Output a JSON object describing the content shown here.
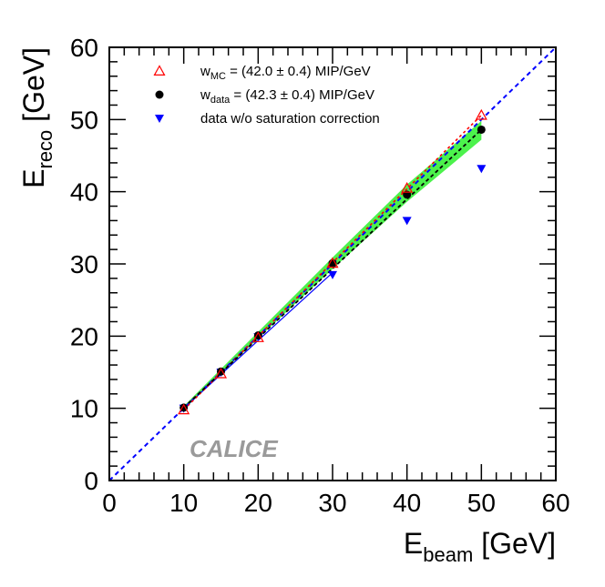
{
  "chart_data": {
    "type": "scatter",
    "xlabel": {
      "main": "E",
      "sub": "beam",
      "unit": " [GeV]"
    },
    "ylabel": {
      "main": "E",
      "sub": "reco",
      "unit": " [GeV]"
    },
    "xlim": [
      0,
      60
    ],
    "ylim": [
      0,
      60
    ],
    "x_ticks": [
      0,
      10,
      20,
      30,
      40,
      50,
      60
    ],
    "y_ticks": [
      0,
      10,
      20,
      30,
      40,
      50,
      60
    ],
    "x_tick_labels": [
      "0",
      "10",
      "20",
      "30",
      "40",
      "50",
      "60"
    ],
    "y_tick_labels": [
      "0",
      "10",
      "20",
      "30",
      "40",
      "50",
      "60"
    ],
    "grid": false,
    "legend_position": "top-left",
    "watermark": "CALICE",
    "diagonal_reference": {
      "x": [
        0,
        60
      ],
      "y": [
        0,
        60
      ],
      "color": "#0000ff",
      "style": "dashed"
    },
    "series": [
      {
        "name": "(42.0 ± 0.4) MIP/GeV",
        "legend_prefix": "w",
        "legend_sub": "MC",
        "legend_suffix": " = (42.0 ± 0.4) MIP/GeV",
        "marker": "open-triangle-up",
        "color": "#ff0000",
        "x": [
          10,
          15,
          20,
          30,
          40,
          50
        ],
        "y": [
          9.8,
          14.8,
          19.8,
          30.1,
          40.5,
          50.6
        ]
      },
      {
        "name": "(42.3 ± 0.4) MIP/GeV",
        "legend_prefix": "w",
        "legend_sub": "data",
        "legend_suffix": " = (42.3 ± 0.4) MIP/GeV",
        "marker": "filled-circle",
        "color": "#000000",
        "x": [
          10,
          15,
          20,
          30,
          40,
          50
        ],
        "y": [
          10.1,
          15.1,
          20.1,
          30.1,
          39.6,
          48.6
        ]
      },
      {
        "name": "data w/o saturation correction",
        "legend_prefix": "data w/o saturation correction",
        "legend_sub": "",
        "legend_suffix": "",
        "marker": "filled-triangle-down",
        "color": "#0000ff",
        "x": [
          10,
          15,
          20,
          30,
          40,
          50
        ],
        "y": [
          10.0,
          15.0,
          19.9,
          28.5,
          36.0,
          43.2
        ]
      }
    ],
    "data_line": {
      "x": [
        10,
        30
      ],
      "y": [
        10.0,
        28.8
      ],
      "color": "#0000ff"
    },
    "mc_dashed_line": {
      "x": [
        10,
        50
      ],
      "y": [
        9.8,
        50.6
      ],
      "color": "#ff0000"
    },
    "data_dashed_line": {
      "x": [
        10,
        50
      ],
      "y": [
        10.1,
        48.6
      ],
      "color": "#000000"
    },
    "uncertainty_band": {
      "color": "#4cf24c",
      "x": [
        10,
        20,
        30,
        40,
        50
      ],
      "upper": [
        10.3,
        20.6,
        30.9,
        41.0,
        49.8
      ],
      "lower": [
        9.8,
        19.7,
        29.3,
        38.6,
        47.2
      ]
    }
  }
}
